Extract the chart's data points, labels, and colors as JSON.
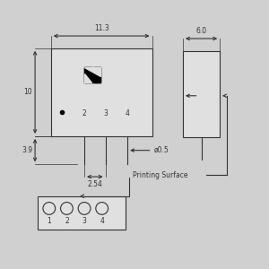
{
  "bg_color": "#d0d0d0",
  "line_color": "#333333",
  "body_color": "#e0e0e0",
  "dim_113_label": "11.3",
  "dim_10_label": "10",
  "dim_39_label": "3.9",
  "dim_254_label": "2.54",
  "dim_05_label": "ø0.5",
  "dim_60_label": "6.0",
  "pin_labels": [
    "2",
    "3",
    "4"
  ],
  "pin_numbers_bottom": [
    "1",
    "2",
    "3",
    "4"
  ],
  "printing_surface_label": "Printing Surface"
}
